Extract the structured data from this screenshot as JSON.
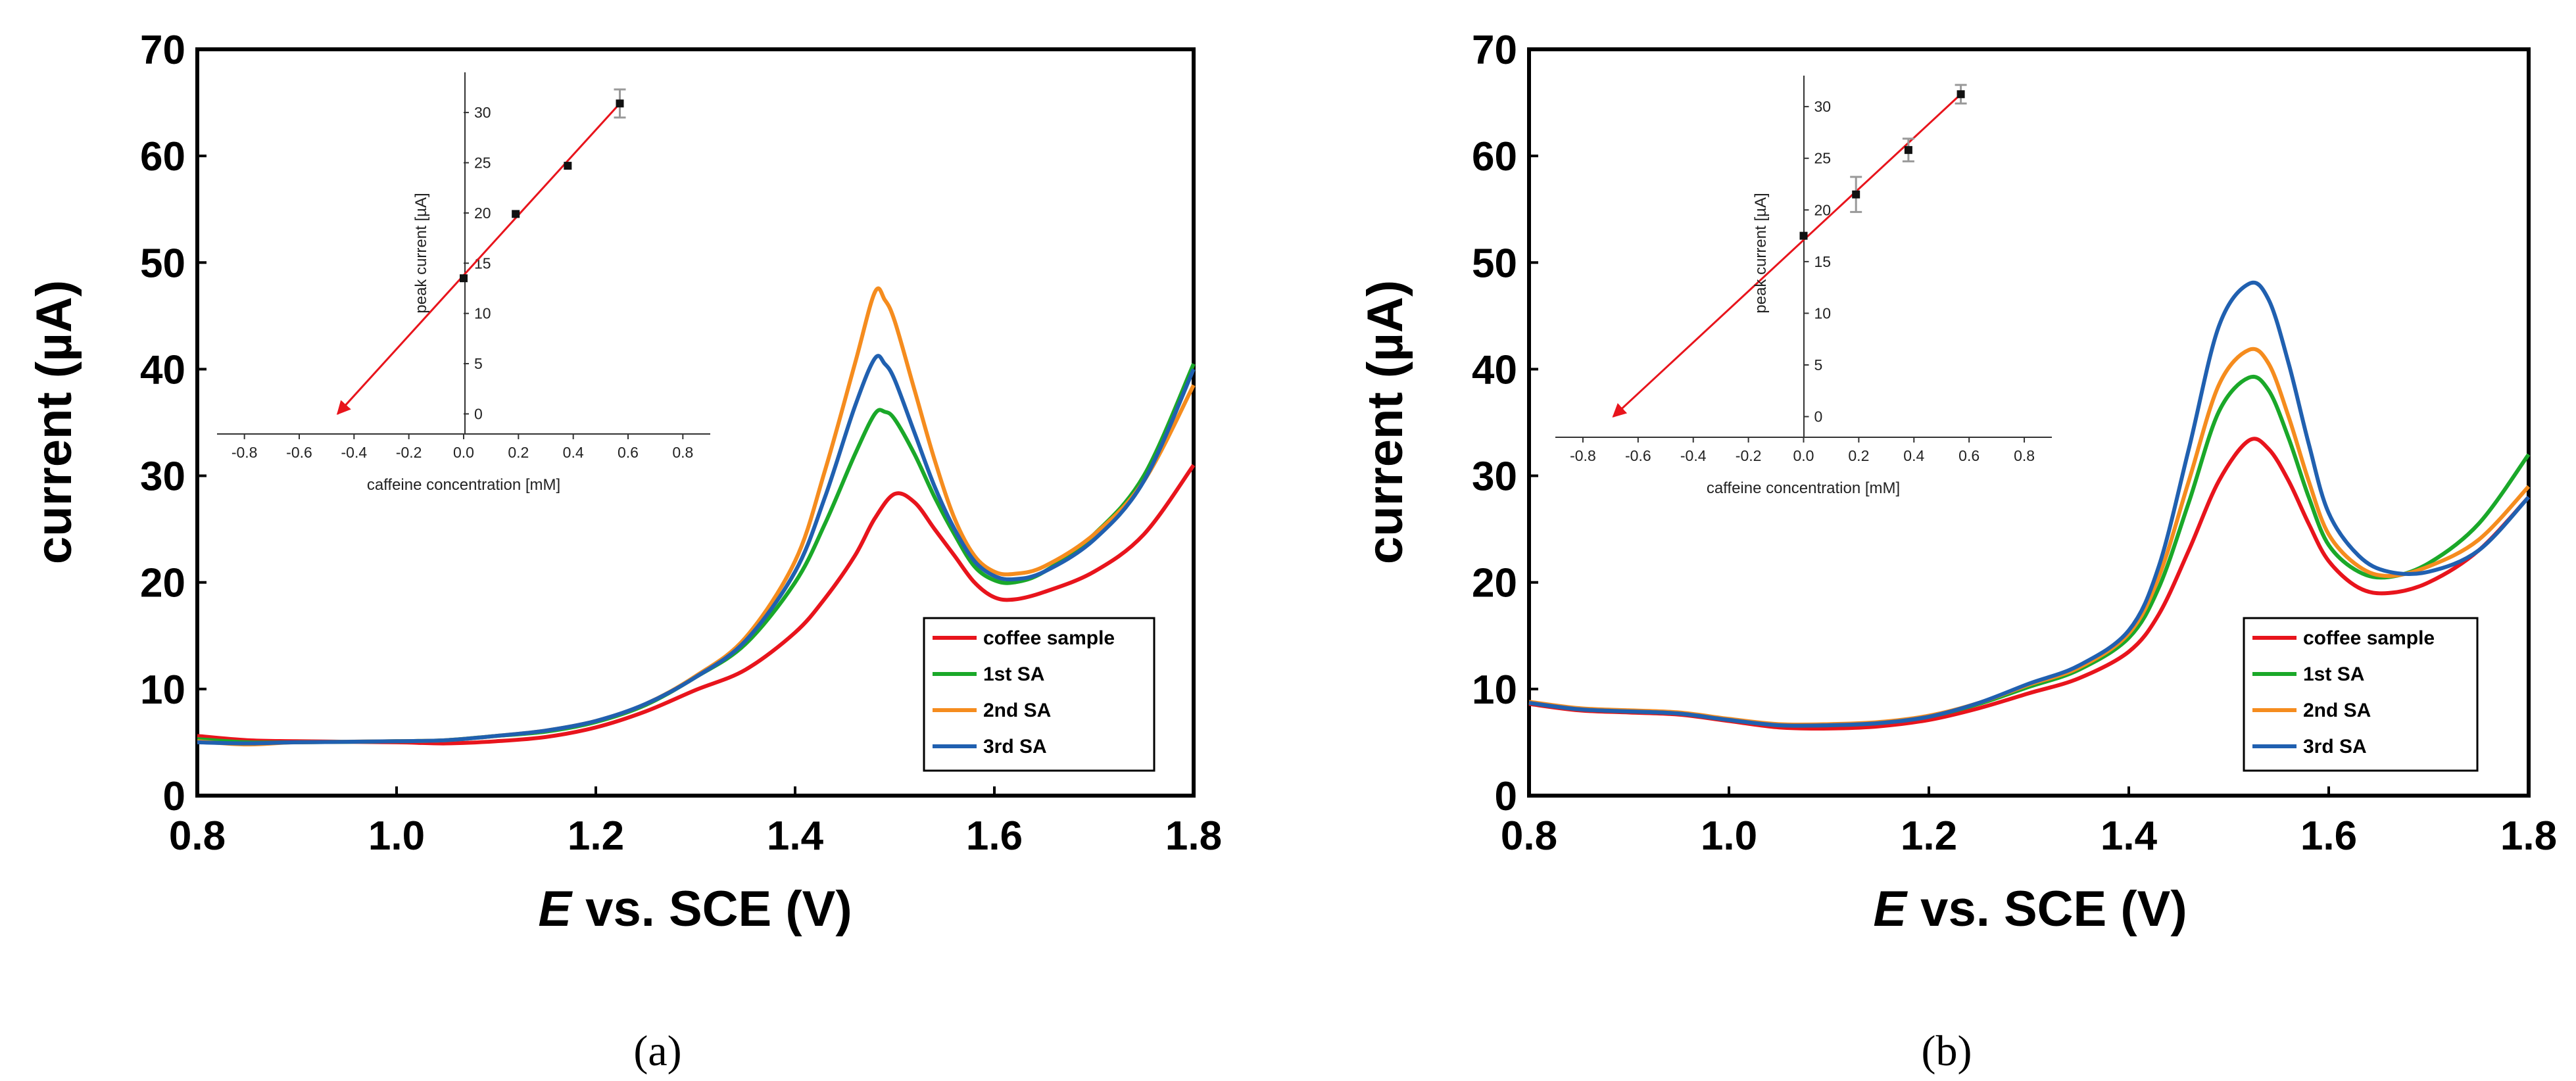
{
  "chart_data": [
    {
      "type": "line",
      "panel_label": "(a)",
      "xlabel_italic": "E",
      "xlabel_rest": " vs. SCE (V)",
      "ylabel": "current (µA)",
      "xlim": [
        0.8,
        1.8
      ],
      "ylim": [
        0,
        70
      ],
      "x_ticks": [
        "0.8",
        "1.0",
        "1.2",
        "1.4",
        "1.6",
        "1.8"
      ],
      "y_ticks": [
        "0",
        "10",
        "20",
        "30",
        "40",
        "50",
        "60",
        "70"
      ],
      "legend_position": "bottom-right",
      "series": [
        {
          "name": "coffee sample",
          "color": "#e8141c",
          "points": [
            [
              0.8,
              5.6
            ],
            [
              0.85,
              5.2
            ],
            [
              0.9,
              5.1
            ],
            [
              1.0,
              5.0
            ],
            [
              1.05,
              4.9
            ],
            [
              1.1,
              5.1
            ],
            [
              1.15,
              5.5
            ],
            [
              1.2,
              6.4
            ],
            [
              1.25,
              7.9
            ],
            [
              1.3,
              9.9
            ],
            [
              1.35,
              11.8
            ],
            [
              1.4,
              15.3
            ],
            [
              1.43,
              18.5
            ],
            [
              1.46,
              22.5
            ],
            [
              1.48,
              26.0
            ],
            [
              1.5,
              28.3
            ],
            [
              1.52,
              27.5
            ],
            [
              1.54,
              25.0
            ],
            [
              1.56,
              22.5
            ],
            [
              1.58,
              20.0
            ],
            [
              1.6,
              18.6
            ],
            [
              1.62,
              18.4
            ],
            [
              1.65,
              19.1
            ],
            [
              1.7,
              21.0
            ],
            [
              1.75,
              24.5
            ],
            [
              1.8,
              31.0
            ]
          ]
        },
        {
          "name": "1st SA",
          "color": "#1aa829",
          "points": [
            [
              0.8,
              5.3
            ],
            [
              0.85,
              5.0
            ],
            [
              0.9,
              5.0
            ],
            [
              1.0,
              5.1
            ],
            [
              1.05,
              5.2
            ],
            [
              1.1,
              5.6
            ],
            [
              1.15,
              6.0
            ],
            [
              1.2,
              6.9
            ],
            [
              1.25,
              8.5
            ],
            [
              1.3,
              11.1
            ],
            [
              1.35,
              14.2
            ],
            [
              1.4,
              20.0
            ],
            [
              1.43,
              25.5
            ],
            [
              1.46,
              32.0
            ],
            [
              1.48,
              35.8
            ],
            [
              1.49,
              36.0
            ],
            [
              1.5,
              35.3
            ],
            [
              1.52,
              32.0
            ],
            [
              1.54,
              28.0
            ],
            [
              1.56,
              24.5
            ],
            [
              1.58,
              21.5
            ],
            [
              1.6,
              20.2
            ],
            [
              1.62,
              20.0
            ],
            [
              1.65,
              21.0
            ],
            [
              1.7,
              24.5
            ],
            [
              1.75,
              30.0
            ],
            [
              1.8,
              40.5
            ]
          ]
        },
        {
          "name": "2nd SA",
          "color": "#f58c1e",
          "points": [
            [
              0.8,
              5.1
            ],
            [
              0.85,
              4.8
            ],
            [
              0.9,
              5.0
            ],
            [
              1.0,
              5.1
            ],
            [
              1.05,
              5.2
            ],
            [
              1.1,
              5.6
            ],
            [
              1.15,
              6.1
            ],
            [
              1.2,
              7.0
            ],
            [
              1.25,
              8.6
            ],
            [
              1.3,
              11.2
            ],
            [
              1.35,
              14.8
            ],
            [
              1.4,
              22.0
            ],
            [
              1.43,
              30.5
            ],
            [
              1.46,
              40.5
            ],
            [
              1.48,
              47.2
            ],
            [
              1.49,
              46.5
            ],
            [
              1.5,
              44.5
            ],
            [
              1.52,
              38.0
            ],
            [
              1.54,
              31.5
            ],
            [
              1.56,
              26.0
            ],
            [
              1.58,
              22.5
            ],
            [
              1.6,
              21.0
            ],
            [
              1.62,
              20.8
            ],
            [
              1.65,
              21.5
            ],
            [
              1.7,
              24.5
            ],
            [
              1.75,
              29.5
            ],
            [
              1.8,
              38.5
            ]
          ]
        },
        {
          "name": "3rd SA",
          "color": "#2060b0",
          "points": [
            [
              0.8,
              5.0
            ],
            [
              0.85,
              4.9
            ],
            [
              0.9,
              5.0
            ],
            [
              1.0,
              5.1
            ],
            [
              1.05,
              5.2
            ],
            [
              1.1,
              5.6
            ],
            [
              1.15,
              6.1
            ],
            [
              1.2,
              7.0
            ],
            [
              1.25,
              8.6
            ],
            [
              1.3,
              11.1
            ],
            [
              1.35,
              14.5
            ],
            [
              1.4,
              21.0
            ],
            [
              1.43,
              28.0
            ],
            [
              1.46,
              36.5
            ],
            [
              1.48,
              41.0
            ],
            [
              1.49,
              40.5
            ],
            [
              1.5,
              39.0
            ],
            [
              1.52,
              34.0
            ],
            [
              1.54,
              29.0
            ],
            [
              1.56,
              25.0
            ],
            [
              1.58,
              22.0
            ],
            [
              1.6,
              20.6
            ],
            [
              1.62,
              20.3
            ],
            [
              1.65,
              21.0
            ],
            [
              1.7,
              24.0
            ],
            [
              1.75,
              29.5
            ],
            [
              1.8,
              40.0
            ]
          ]
        }
      ],
      "inset": {
        "type": "scatter",
        "xlabel": "caffeine concentration [mM]",
        "ylabel": "peak current [µA]",
        "xlim": [
          -0.9,
          0.9
        ],
        "ylim": [
          -2,
          34
        ],
        "x_ticks": [
          "-0.8",
          "-0.6",
          "-0.4",
          "-0.2",
          "0.0",
          "0.2",
          "0.4",
          "0.6",
          "0.8"
        ],
        "y_ticks": [
          "0",
          "5",
          "10",
          "15",
          "20",
          "25",
          "30"
        ],
        "x": [
          0.0,
          0.19,
          0.38,
          0.57
        ],
        "y": [
          13.5,
          19.9,
          24.7,
          30.9
        ],
        "error": [
          0.0,
          0.0,
          0.0,
          1.4
        ],
        "fit_line": {
          "x": [
            -0.46,
            0.57
          ],
          "y": [
            0.0,
            30.9
          ],
          "color": "#e8141c"
        }
      }
    },
    {
      "type": "line",
      "panel_label": "(b)",
      "xlabel_italic": "E",
      "xlabel_rest": " vs. SCE (V)",
      "ylabel": "current (µA)",
      "xlim": [
        0.8,
        1.8
      ],
      "ylim": [
        0,
        70
      ],
      "x_ticks": [
        "0.8",
        "1.0",
        "1.2",
        "1.4",
        "1.6",
        "1.8"
      ],
      "y_ticks": [
        "0",
        "10",
        "20",
        "30",
        "40",
        "50",
        "60",
        "70"
      ],
      "legend_position": "bottom-right",
      "series": [
        {
          "name": "coffee sample",
          "color": "#e8141c",
          "points": [
            [
              0.8,
              8.6
            ],
            [
              0.85,
              8.0
            ],
            [
              0.9,
              7.8
            ],
            [
              0.95,
              7.6
            ],
            [
              1.0,
              7.0
            ],
            [
              1.05,
              6.4
            ],
            [
              1.1,
              6.3
            ],
            [
              1.15,
              6.5
            ],
            [
              1.2,
              7.1
            ],
            [
              1.25,
              8.2
            ],
            [
              1.3,
              9.6
            ],
            [
              1.35,
              11.0
            ],
            [
              1.4,
              13.5
            ],
            [
              1.43,
              17.0
            ],
            [
              1.46,
              23.0
            ],
            [
              1.49,
              29.5
            ],
            [
              1.52,
              33.3
            ],
            [
              1.54,
              32.5
            ],
            [
              1.56,
              29.5
            ],
            [
              1.58,
              25.5
            ],
            [
              1.6,
              22.0
            ],
            [
              1.63,
              19.5
            ],
            [
              1.66,
              19.0
            ],
            [
              1.7,
              20.0
            ],
            [
              1.75,
              23.0
            ],
            [
              1.8,
              28.0
            ]
          ]
        },
        {
          "name": "1st SA",
          "color": "#1aa829",
          "points": [
            [
              0.8,
              8.7
            ],
            [
              0.85,
              8.1
            ],
            [
              0.9,
              7.9
            ],
            [
              0.95,
              7.7
            ],
            [
              1.0,
              7.1
            ],
            [
              1.05,
              6.6
            ],
            [
              1.1,
              6.6
            ],
            [
              1.15,
              6.8
            ],
            [
              1.2,
              7.4
            ],
            [
              1.25,
              8.6
            ],
            [
              1.3,
              10.2
            ],
            [
              1.35,
              11.8
            ],
            [
              1.4,
              14.8
            ],
            [
              1.43,
              19.5
            ],
            [
              1.46,
              27.5
            ],
            [
              1.49,
              36.0
            ],
            [
              1.52,
              39.2
            ],
            [
              1.54,
              38.0
            ],
            [
              1.56,
              33.5
            ],
            [
              1.58,
              28.0
            ],
            [
              1.6,
              23.5
            ],
            [
              1.63,
              21.0
            ],
            [
              1.66,
              20.5
            ],
            [
              1.7,
              21.8
            ],
            [
              1.75,
              25.5
            ],
            [
              1.8,
              32.0
            ]
          ]
        },
        {
          "name": "2nd SA",
          "color": "#f58c1e",
          "points": [
            [
              0.8,
              8.8
            ],
            [
              0.85,
              8.2
            ],
            [
              0.9,
              8.0
            ],
            [
              0.95,
              7.8
            ],
            [
              1.0,
              7.2
            ],
            [
              1.05,
              6.7
            ],
            [
              1.1,
              6.7
            ],
            [
              1.15,
              6.9
            ],
            [
              1.2,
              7.5
            ],
            [
              1.25,
              8.7
            ],
            [
              1.3,
              10.4
            ],
            [
              1.35,
              12.0
            ],
            [
              1.4,
              15.2
            ],
            [
              1.43,
              20.5
            ],
            [
              1.46,
              29.5
            ],
            [
              1.49,
              38.5
            ],
            [
              1.52,
              41.8
            ],
            [
              1.54,
              40.5
            ],
            [
              1.56,
              35.5
            ],
            [
              1.58,
              29.5
            ],
            [
              1.6,
              24.5
            ],
            [
              1.63,
              21.5
            ],
            [
              1.66,
              20.6
            ],
            [
              1.7,
              21.5
            ],
            [
              1.75,
              24.0
            ],
            [
              1.8,
              29.0
            ]
          ]
        },
        {
          "name": "3rd SA",
          "color": "#2060b0",
          "points": [
            [
              0.8,
              8.7
            ],
            [
              0.85,
              8.1
            ],
            [
              0.9,
              7.9
            ],
            [
              0.95,
              7.7
            ],
            [
              1.0,
              7.1
            ],
            [
              1.05,
              6.6
            ],
            [
              1.1,
              6.6
            ],
            [
              1.15,
              6.8
            ],
            [
              1.2,
              7.4
            ],
            [
              1.25,
              8.7
            ],
            [
              1.3,
              10.5
            ],
            [
              1.35,
              12.2
            ],
            [
              1.4,
              15.5
            ],
            [
              1.43,
              21.5
            ],
            [
              1.46,
              32.5
            ],
            [
              1.49,
              44.0
            ],
            [
              1.52,
              48.0
            ],
            [
              1.54,
              46.5
            ],
            [
              1.56,
              40.5
            ],
            [
              1.58,
              33.0
            ],
            [
              1.6,
              26.5
            ],
            [
              1.63,
              22.5
            ],
            [
              1.66,
              21.0
            ],
            [
              1.7,
              21.0
            ],
            [
              1.75,
              23.0
            ],
            [
              1.8,
              28.0
            ]
          ]
        }
      ],
      "inset": {
        "type": "scatter",
        "xlabel": "caffeine concentration [mM]",
        "ylabel": "peak current [µA]",
        "xlim": [
          -0.9,
          0.9
        ],
        "ylim": [
          -2,
          33
        ],
        "x_ticks": [
          "-0.8",
          "-0.6",
          "-0.4",
          "-0.2",
          "0.0",
          "0.2",
          "0.4",
          "0.6",
          "0.8"
        ],
        "y_ticks": [
          "0",
          "5",
          "10",
          "15",
          "20",
          "25",
          "30"
        ],
        "x": [
          0.0,
          0.19,
          0.38,
          0.57
        ],
        "y": [
          17.5,
          21.5,
          25.8,
          31.2
        ],
        "error": [
          0.0,
          1.7,
          1.1,
          0.9
        ],
        "fit_line": {
          "x": [
            -0.69,
            0.57
          ],
          "y": [
            0.0,
            31.2
          ],
          "color": "#e8141c"
        }
      }
    }
  ]
}
